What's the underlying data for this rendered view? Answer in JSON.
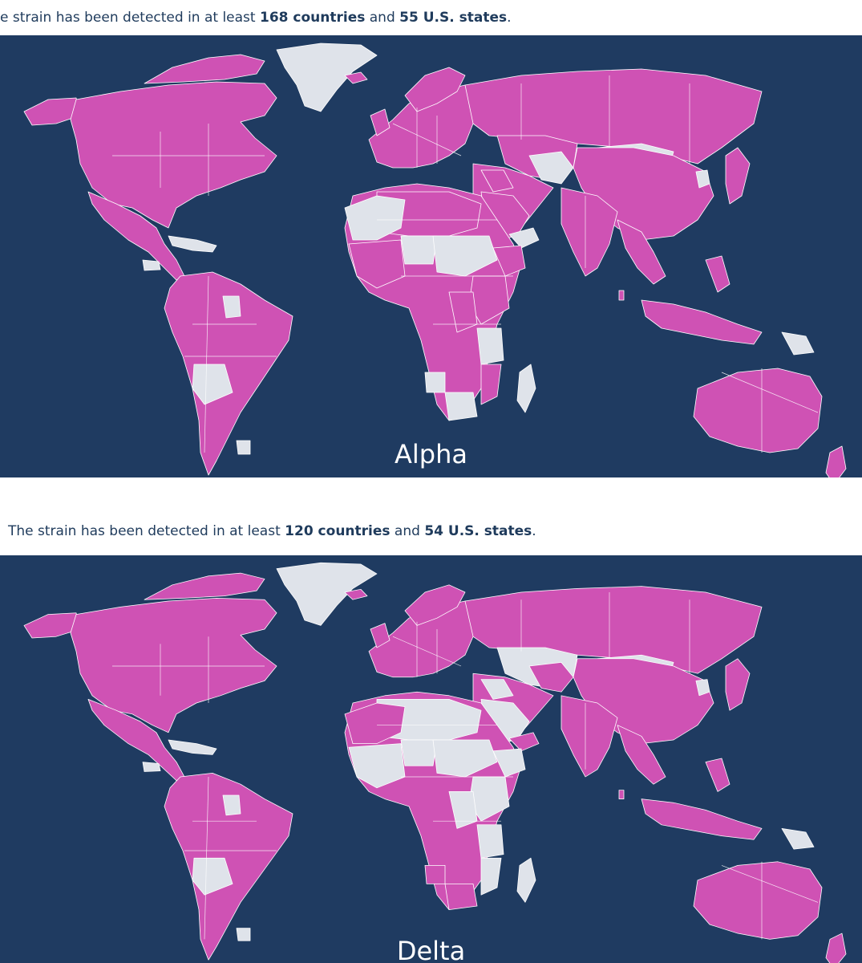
{
  "colors": {
    "detected": "#cf52b4",
    "not_detected": "#dfe3ea",
    "ocean": "#1f3b61",
    "border": "#ffffff"
  },
  "panels": [
    {
      "variant": "Alpha",
      "caption": {
        "prefix": "e strain has been detected in at least ",
        "countries": "168 countries",
        "middle": " and ",
        "states": "55 U.S. states",
        "suffix": "."
      },
      "not_detected_regions": [
        "greenland",
        "mongolia",
        "central-asia-south",
        "yemen",
        "west-sahara",
        "sudan-chad",
        "niger",
        "korea-north",
        "png-east",
        "tanzania",
        "bolivia",
        "botswana",
        "madagascar",
        "guyana",
        "uruguay",
        "namibia-north",
        "cuba-hispaniola",
        "honduras"
      ]
    },
    {
      "variant": "Delta",
      "caption": {
        "prefix": "The strain has been detected in at least ",
        "countries": "120 countries",
        "middle": " and ",
        "states": "54 U.S. states",
        "suffix": "."
      },
      "not_detected_regions": [
        "greenland",
        "mongolia",
        "central-asia",
        "sahara",
        "saudi",
        "sudan-chad",
        "niger",
        "east-africa",
        "west-africa",
        "horn",
        "congo-east",
        "bolivia",
        "madagascar",
        "guyana",
        "uruguay",
        "png-east",
        "korea-north",
        "cuba-hispaniola",
        "honduras",
        "tanzania",
        "mozambique",
        "iraq-syria"
      ]
    }
  ]
}
